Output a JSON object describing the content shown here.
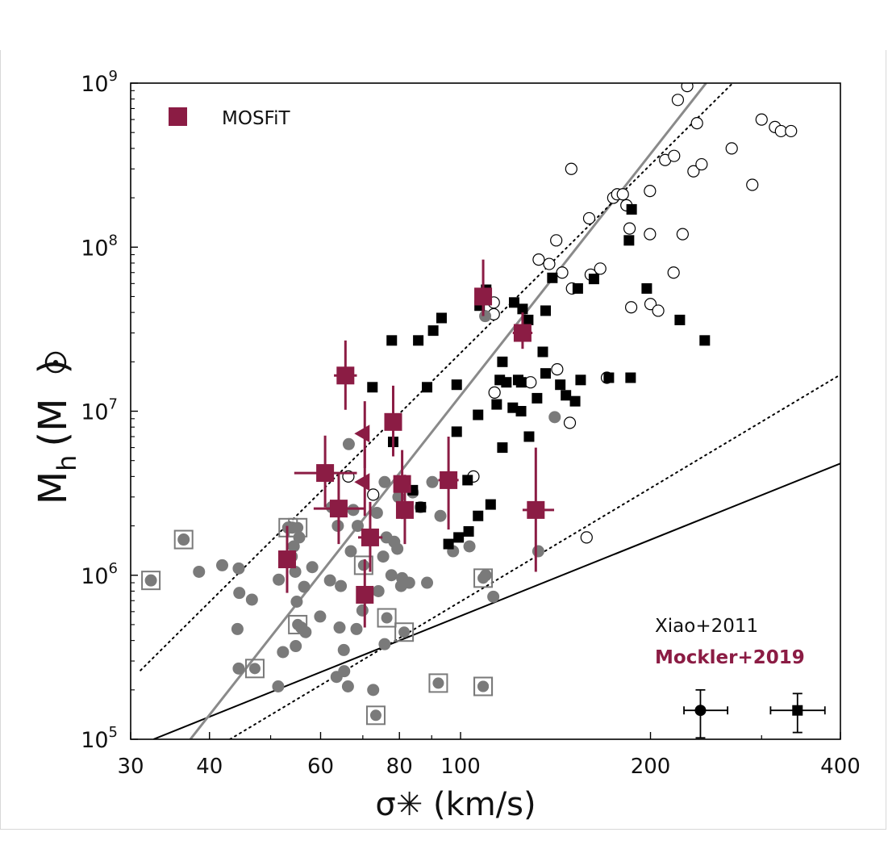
{
  "chart_data": {
    "type": "scatter",
    "x_scale": "log",
    "y_scale": "log",
    "xlim": [
      30,
      400
    ],
    "ylim": [
      100000,
      1000000000
    ],
    "xlabel": "σ✳ (km/s)",
    "ylabel_main": "M",
    "ylabel_sub": "h",
    "ylabel_unit_open": "(M",
    "ylabel_unit_close": ")",
    "x_ticks": [
      30,
      40,
      60,
      80,
      100,
      200,
      400
    ],
    "x_tick_labels": [
      "30",
      "40",
      "60",
      "80",
      "100",
      "200",
      "400"
    ],
    "y_ticks": [
      {
        "value": 100000,
        "base": "10",
        "exp": "5"
      },
      {
        "value": 1000000,
        "base": "10",
        "exp": "6"
      },
      {
        "value": 10000000,
        "base": "10",
        "exp": "7"
      },
      {
        "value": 100000000,
        "base": "10",
        "exp": "8"
      },
      {
        "value": 1000000000,
        "base": "10",
        "exp": "9"
      }
    ],
    "legend": {
      "label": "MOSFiT",
      "color": "#8b1c44",
      "placement": "top-left"
    },
    "annotations": {
      "line1": {
        "text": "Xiao+2011",
        "color": "#111111"
      },
      "line2": {
        "text": "Mockler+2019",
        "color": "#8b1c44"
      }
    },
    "colors": {
      "mosfit": "#8b1c44",
      "gray": "#7a7a7a",
      "black": "#000000",
      "gray_line": "#8a8a8a"
    },
    "lines": [
      {
        "name": "black fit",
        "style": "solid",
        "color": "#000000",
        "points": [
          [
            32.6,
            100000
          ],
          [
            400,
            4800000
          ]
        ]
      },
      {
        "name": "gray fit",
        "style": "solid",
        "color": "#8a8a8a",
        "points": [
          [
            37.3,
            100000
          ],
          [
            245,
            1000000000
          ]
        ]
      },
      {
        "name": "upper scatter",
        "style": "dotted",
        "color": "#000000",
        "points": [
          [
            31.1,
            263000
          ],
          [
            270,
            1000000000
          ]
        ]
      },
      {
        "name": "lower scatter",
        "style": "dotted",
        "color": "#000000",
        "points": [
          [
            43.1,
            100000
          ],
          [
            400,
            16700000
          ]
        ]
      }
    ],
    "mosfit_squares": [
      {
        "x": 108.6,
        "y": 50000000,
        "xerr": [
          105.6,
          111.6
        ],
        "yerr": [
          38000000,
          84000000
        ]
      },
      {
        "x": 125.4,
        "y": 30000000,
        "xerr": [
          121,
          130
        ],
        "yerr": [
          24000000,
          40000000
        ]
      },
      {
        "x": 65.7,
        "y": 16500000,
        "xerr": [
          63,
          68.5
        ],
        "yerr": [
          10200000,
          27000000
        ]
      },
      {
        "x": 78.2,
        "y": 8600000,
        "xerr": [
          76.2,
          80.3
        ],
        "yerr": [
          5300000,
          14300000
        ]
      },
      {
        "x": 61.0,
        "y": 4200000,
        "xerr": [
          54.5,
          68.5
        ],
        "yerr": [
          2600000,
          7100000
        ]
      },
      {
        "x": 80.8,
        "y": 3600000,
        "xerr": [
          78.7,
          83
        ],
        "yerr": [
          2200000,
          5800000
        ]
      },
      {
        "x": 95.7,
        "y": 3800000,
        "xerr": [
          92.2,
          99.3
        ],
        "yerr": [
          1900000,
          7000000
        ]
      },
      {
        "x": 64.1,
        "y": 2550000,
        "xerr": [
          58.5,
          70.3
        ],
        "yerr": [
          1550000,
          4200000
        ]
      },
      {
        "x": 81.6,
        "y": 2500000,
        "xerr": [
          79.5,
          83.8
        ],
        "yerr": [
          1550000,
          4100000
        ]
      },
      {
        "x": 131.6,
        "y": 2500000,
        "xerr": [
          125.4,
          140.7
        ],
        "yerr": [
          1050000,
          6000000
        ]
      },
      {
        "x": 71.9,
        "y": 1700000,
        "xerr": [
          68.8,
          75.2
        ],
        "yerr": [
          1050000,
          2800000
        ]
      },
      {
        "x": 53.1,
        "y": 1250000,
        "xerr": [
          51.5,
          54.7
        ],
        "yerr": [
          780000,
          2000000
        ]
      },
      {
        "x": 70.5,
        "y": 760000,
        "xerr": [
          69,
          72
        ],
        "yerr": [
          480000,
          1250000
        ]
      }
    ],
    "mosfit_triangles": [
      {
        "x": 70.5,
        "y": 7300000,
        "yerr": [
          4500000,
          11500000
        ]
      },
      {
        "x": 70.5,
        "y": 3700000,
        "yerr": [
          2300000,
          5900000
        ]
      }
    ],
    "black_squares": [
      [
        85.7,
        27000000
      ],
      [
        93.3,
        37000000
      ],
      [
        90.5,
        31000000
      ],
      [
        77.8,
        27000000
      ],
      [
        107.2,
        44000000
      ],
      [
        109.8,
        55000000
      ],
      [
        121.6,
        46000000
      ],
      [
        125.4,
        42000000
      ],
      [
        128,
        36000000
      ],
      [
        136.4,
        41000000
      ],
      [
        139.8,
        65000000
      ],
      [
        153.4,
        56000000
      ],
      [
        162.7,
        64000000
      ],
      [
        184.9,
        110000000
      ],
      [
        186.7,
        170000000
      ],
      [
        197.3,
        56000000
      ],
      [
        222.6,
        36000000
      ],
      [
        243.8,
        27000000
      ],
      [
        135,
        23000000
      ],
      [
        136.4,
        17000000
      ],
      [
        143.9,
        14500000
      ],
      [
        146.9,
        12500000
      ],
      [
        155,
        15500000
      ],
      [
        151.9,
        11500000
      ],
      [
        171.8,
        16000000
      ],
      [
        186,
        16000000
      ],
      [
        116.5,
        20000000
      ],
      [
        115.4,
        15500000
      ],
      [
        118.2,
        15000000
      ],
      [
        123.4,
        15500000
      ],
      [
        124.8,
        15000000
      ],
      [
        114.1,
        11000000
      ],
      [
        121,
        10500000
      ],
      [
        124.7,
        10000000
      ],
      [
        106.6,
        9500000
      ],
      [
        98.6,
        7500000
      ],
      [
        98.6,
        14500000
      ],
      [
        88.5,
        14000000
      ],
      [
        72.5,
        14000000
      ],
      [
        128.4,
        7000000
      ],
      [
        132.2,
        12000000
      ],
      [
        116.5,
        6000000
      ],
      [
        102.6,
        3800000
      ],
      [
        111.6,
        2700000
      ],
      [
        106.6,
        2300000
      ],
      [
        103,
        1850000
      ],
      [
        99.3,
        1700000
      ],
      [
        95.7,
        1550000
      ],
      [
        84,
        3300000
      ],
      [
        86.5,
        2600000
      ],
      [
        78.2,
        6500000
      ]
    ],
    "open_circles": [
      [
        228.7,
        960000000
      ],
      [
        221,
        790000000
      ],
      [
        237,
        570000000
      ],
      [
        300,
        600000000
      ],
      [
        315,
        540000000
      ],
      [
        322,
        510000000
      ],
      [
        334,
        510000000
      ],
      [
        211,
        340000000
      ],
      [
        218,
        360000000
      ],
      [
        234,
        290000000
      ],
      [
        241,
        320000000
      ],
      [
        269,
        400000000
      ],
      [
        149.8,
        300000000
      ],
      [
        174.6,
        200000000
      ],
      [
        177.1,
        210000000
      ],
      [
        180.8,
        210000000
      ],
      [
        183.2,
        180000000
      ],
      [
        199.6,
        220000000
      ],
      [
        185.3,
        130000000
      ],
      [
        199.6,
        120000000
      ],
      [
        224.9,
        120000000
      ],
      [
        290,
        240000000
      ],
      [
        159.9,
        150000000
      ],
      [
        141.8,
        110000000
      ],
      [
        133,
        84000000
      ],
      [
        138.2,
        79000000
      ],
      [
        144.9,
        70000000
      ],
      [
        150.2,
        56000000
      ],
      [
        160.8,
        68000000
      ],
      [
        166.5,
        74000000
      ],
      [
        186.4,
        43000000
      ],
      [
        200,
        45000000
      ],
      [
        205.7,
        41000000
      ],
      [
        217.6,
        70000000
      ],
      [
        112.9,
        46000000
      ],
      [
        112.9,
        39000000
      ],
      [
        170.6,
        16000000
      ],
      [
        142.3,
        18000000
      ],
      [
        129.1,
        15000000
      ],
      [
        113.2,
        13000000
      ],
      [
        149,
        8500000
      ],
      [
        158.4,
        1700000
      ],
      [
        104.8,
        4000000
      ],
      [
        66.4,
        4000000
      ],
      [
        72.7,
        3100000
      ]
    ],
    "gray_circles": [
      [
        32.3,
        930000
      ],
      [
        36.4,
        1650000
      ],
      [
        38.5,
        1050000
      ],
      [
        41.9,
        1150000
      ],
      [
        44.5,
        1100000
      ],
      [
        44.6,
        780000
      ],
      [
        46.7,
        710000
      ],
      [
        44.3,
        470000
      ],
      [
        51.5,
        940000
      ],
      [
        54.4,
        1500000
      ],
      [
        54,
        1300000
      ],
      [
        54.7,
        1050000
      ],
      [
        56.5,
        850000
      ],
      [
        55,
        690000
      ],
      [
        56.8,
        450000
      ],
      [
        55.9,
        480000
      ],
      [
        54.8,
        370000
      ],
      [
        52.3,
        340000
      ],
      [
        58.2,
        1120000
      ],
      [
        59.9,
        560000
      ],
      [
        62.1,
        930000
      ],
      [
        63.9,
        2000000
      ],
      [
        66.5,
        6300000
      ],
      [
        67.6,
        2500000
      ],
      [
        68.7,
        2000000
      ],
      [
        67,
        1400000
      ],
      [
        64.6,
        860000
      ],
      [
        64.3,
        480000
      ],
      [
        68.4,
        470000
      ],
      [
        65.3,
        350000
      ],
      [
        63.6,
        240000
      ],
      [
        65.4,
        260000
      ],
      [
        66.3,
        210000
      ],
      [
        69.9,
        610000
      ],
      [
        71.4,
        780000
      ],
      [
        74.1,
        800000
      ],
      [
        76.3,
        1700000
      ],
      [
        78.5,
        1600000
      ],
      [
        79.4,
        1450000
      ],
      [
        75.4,
        1300000
      ],
      [
        77.7,
        1000000
      ],
      [
        80.8,
        960000
      ],
      [
        82.9,
        900000
      ],
      [
        80.5,
        860000
      ],
      [
        75.8,
        380000
      ],
      [
        72.7,
        200000
      ],
      [
        88.5,
        900000
      ],
      [
        97.3,
        1400000
      ],
      [
        103.3,
        1500000
      ],
      [
        109.6,
        1000000
      ],
      [
        112.7,
        740000
      ],
      [
        141,
        9200000
      ],
      [
        132.8,
        1400000
      ],
      [
        109.4,
        38000000
      ],
      [
        75.8,
        3700000
      ],
      [
        79.7,
        3000000
      ],
      [
        84,
        3200000
      ],
      [
        86.4,
        2600000
      ],
      [
        92.9,
        2300000
      ],
      [
        55.5,
        1700000
      ],
      [
        62.5,
        2600000
      ],
      [
        73.7,
        2400000
      ],
      [
        90.2,
        3700000
      ],
      [
        53.3,
        1950000
      ],
      [
        54.1,
        1950000
      ],
      [
        44.5,
        270000
      ],
      [
        51.4,
        210000
      ]
    ],
    "gray_boxed": [
      [
        32.3,
        930000
      ],
      [
        36.4,
        1650000
      ],
      [
        53.3,
        1950000
      ],
      [
        55.2,
        1950000
      ],
      [
        70.2,
        1150000
      ],
      [
        55.2,
        500000
      ],
      [
        47.2,
        270000
      ],
      [
        76.4,
        550000
      ],
      [
        81.4,
        450000
      ],
      [
        92.2,
        220000
      ],
      [
        108.6,
        210000
      ],
      [
        108.6,
        960000
      ],
      [
        108.6,
        210000
      ],
      [
        73.4,
        140000
      ]
    ],
    "reference_errorbars": [
      {
        "marker": "circle",
        "x": 240,
        "y": 150000,
        "xerr": [
          226,
          265
        ],
        "yerr": [
          102000,
          200000
        ]
      },
      {
        "marker": "square",
        "x": 342,
        "y": 150000,
        "xerr": [
          310,
          378
        ],
        "yerr": [
          110000,
          190000
        ]
      }
    ]
  }
}
